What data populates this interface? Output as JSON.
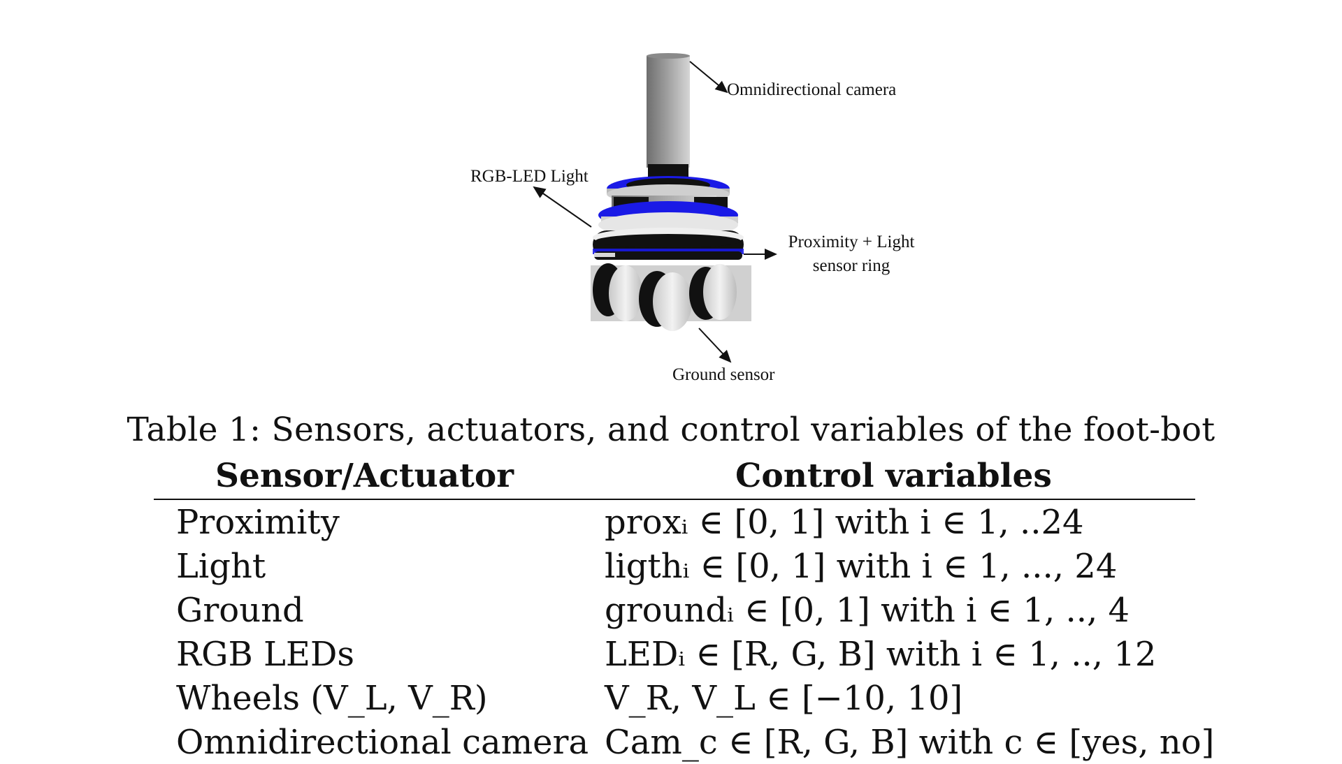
{
  "figure": {
    "labels": {
      "camera": "Omnidirectional camera",
      "rgb_led": "RGB-LED Light",
      "proximity_line1": "Proximity  + Light",
      "proximity_line2": "sensor ring",
      "ground": "Ground sensor"
    },
    "colors": {
      "blue_disc": "#1a1ae6",
      "grey_body": "#9a9a9a",
      "black_parts": "#111111",
      "white_parts": "#e8e8e8"
    }
  },
  "table": {
    "caption": "Table 1: Sensors, actuators, and control variables of the foot-bot",
    "headers": [
      "Sensor/Actuator",
      "Control variables"
    ],
    "rows": [
      {
        "sensor": "Proximity",
        "control": "proxᵢ ∈ [0, 1] with i ∈ 1, ..24"
      },
      {
        "sensor": "Light",
        "control": "ligthᵢ ∈ [0, 1] with i ∈ 1, ..., 24"
      },
      {
        "sensor": "Ground",
        "control": "groundᵢ ∈ [0, 1] with i ∈ 1, .., 4"
      },
      {
        "sensor": "RGB LEDs",
        "control": "LEDᵢ ∈ [R, G, B] with i ∈ 1, .., 12"
      },
      {
        "sensor": "Wheels (V_L, V_R)",
        "control": "V_R, V_L ∈ [−10, 10]"
      },
      {
        "sensor": "Omnidirectional camera",
        "control": "Cam_c ∈ [R, G, B] with c ∈ [yes, no]"
      }
    ]
  }
}
